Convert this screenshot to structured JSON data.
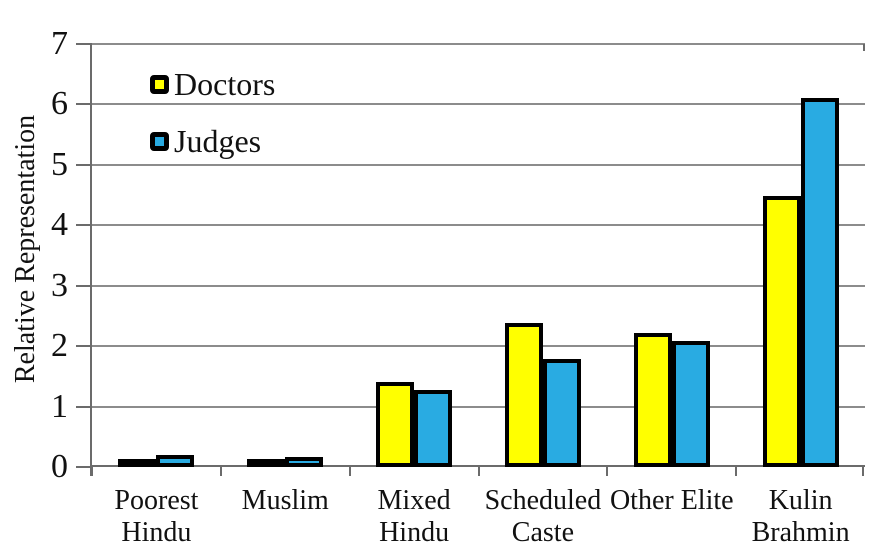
{
  "colors": {
    "background": "#FFFFFF",
    "gridline": "#8C8C8C",
    "axis": "#6B6B6B",
    "bar_border": "#000000",
    "text": "#111111"
  },
  "chart_data": {
    "type": "bar",
    "title": "",
    "ylabel": "Relative Representation",
    "xlabel": "",
    "ylim": [
      0,
      7
    ],
    "yticks": [
      0,
      1,
      2,
      3,
      4,
      5,
      6,
      7
    ],
    "grid": "horizontal",
    "legend_position": "top-left-inside",
    "categories": [
      "Poorest Hindu",
      "Muslim",
      "Mixed Hindu",
      "Scheduled Caste",
      "Other Elite",
      "Kulin Brahmin"
    ],
    "category_label_lines": [
      [
        "Poorest",
        "Hindu"
      ],
      [
        "Muslim"
      ],
      [
        "Mixed",
        "Hindu"
      ],
      [
        "Scheduled",
        "Caste"
      ],
      [
        "Other Elite"
      ],
      [
        "Kulin",
        "Brahmin"
      ]
    ],
    "series": [
      {
        "name": "Doctors",
        "color": "#FFFF00",
        "values": [
          0.08,
          0.14,
          1.4,
          2.38,
          2.22,
          4.48
        ]
      },
      {
        "name": "Judges",
        "color": "#29ABE2",
        "values": [
          0.2,
          0.16,
          1.28,
          1.78,
          2.09,
          6.1
        ]
      }
    ]
  }
}
